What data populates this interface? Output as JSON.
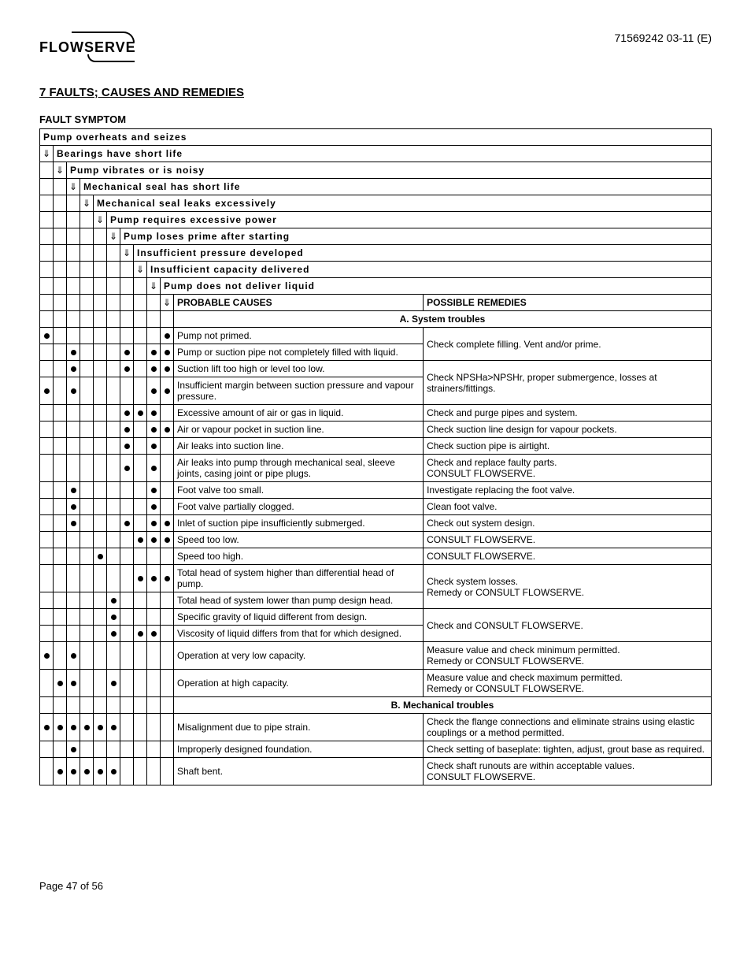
{
  "doc_id": "71569242 03-11 (E)",
  "logo_text": "FLOWSERVE",
  "section_title": "7  FAULTS; CAUSES AND REMEDIES",
  "subsection_title": "FAULT SYMPTOM",
  "symptoms": [
    "Pump overheats and seizes",
    "Bearings have short life",
    "Pump vibrates or is noisy",
    "Mechanical seal has short life",
    "Mechanical seal leaks excessively",
    "Pump requires excessive power",
    "Pump loses prime after starting",
    "Insufficient pressure developed",
    "Insufficient capacity delivered",
    "Pump does not deliver liquid"
  ],
  "column_headers": {
    "causes": "PROBABLE CAUSES",
    "remedies": "POSSIBLE REMEDIES"
  },
  "categories": {
    "a": "A.  System troubles",
    "b": "B.  Mechanical troubles"
  },
  "rows_a": [
    {
      "dots": [
        1,
        0,
        0,
        0,
        0,
        0,
        0,
        0,
        0,
        1
      ],
      "cause": "Pump not primed.",
      "remedy": "Check complete filling.  Vent and/or prime.",
      "rowspan_remedy": 2
    },
    {
      "dots": [
        0,
        0,
        1,
        0,
        0,
        0,
        1,
        0,
        1,
        1
      ],
      "cause": "Pump or suction pipe not completely filled with liquid."
    },
    {
      "dots": [
        0,
        0,
        1,
        0,
        0,
        0,
        1,
        0,
        1,
        1
      ],
      "cause": "Suction lift too high or level too low.",
      "remedy": "Check NPSHa>NPSHr, proper submergence, losses at strainers/fittings.",
      "rowspan_remedy": 2
    },
    {
      "dots": [
        1,
        0,
        1,
        0,
        0,
        0,
        0,
        0,
        1,
        1
      ],
      "cause": "Insufficient margin between suction pressure and vapour pressure."
    },
    {
      "dots": [
        0,
        0,
        0,
        0,
        0,
        0,
        1,
        1,
        1,
        0
      ],
      "cause": "Excessive amount of air or gas in liquid.",
      "remedy": "Check and purge pipes and system."
    },
    {
      "dots": [
        0,
        0,
        0,
        0,
        0,
        0,
        1,
        0,
        1,
        1
      ],
      "cause": "Air or vapour pocket in suction line.",
      "remedy": "Check suction line design for vapour pockets."
    },
    {
      "dots": [
        0,
        0,
        0,
        0,
        0,
        0,
        1,
        0,
        1,
        0
      ],
      "cause": "Air leaks into suction line.",
      "remedy": "Check suction pipe is airtight."
    },
    {
      "dots": [
        0,
        0,
        0,
        0,
        0,
        0,
        1,
        0,
        1,
        0
      ],
      "cause": "Air leaks into pump through mechanical seal, sleeve joints, casing joint or pipe plugs.",
      "remedy": "Check and replace faulty parts.\nCONSULT FLOWSERVE."
    },
    {
      "dots": [
        0,
        0,
        1,
        0,
        0,
        0,
        0,
        0,
        1,
        0
      ],
      "cause": "Foot valve too small.",
      "remedy": "Investigate replacing the foot valve."
    },
    {
      "dots": [
        0,
        0,
        1,
        0,
        0,
        0,
        0,
        0,
        1,
        0
      ],
      "cause": "Foot valve partially clogged.",
      "remedy": "Clean foot valve."
    },
    {
      "dots": [
        0,
        0,
        1,
        0,
        0,
        0,
        1,
        0,
        1,
        1
      ],
      "cause": "Inlet of suction pipe insufficiently submerged.",
      "remedy": "Check out system design."
    },
    {
      "dots": [
        0,
        0,
        0,
        0,
        0,
        0,
        0,
        1,
        1,
        1
      ],
      "cause": "Speed too low.",
      "remedy": "CONSULT FLOWSERVE."
    },
    {
      "dots": [
        0,
        0,
        0,
        0,
        1,
        0,
        0,
        0,
        0,
        0
      ],
      "cause": "Speed too high.",
      "remedy": "CONSULT FLOWSERVE."
    },
    {
      "dots": [
        0,
        0,
        0,
        0,
        0,
        0,
        0,
        1,
        1,
        1
      ],
      "cause": "Total head of system higher than differential head of pump.",
      "remedy": "Check system losses.\nRemedy or CONSULT FLOWSERVE.",
      "rowspan_remedy": 2
    },
    {
      "dots": [
        0,
        0,
        0,
        0,
        0,
        1,
        0,
        0,
        0,
        0
      ],
      "cause": "Total head of system lower than pump design head."
    },
    {
      "dots": [
        0,
        0,
        0,
        0,
        0,
        1,
        0,
        0,
        0,
        0
      ],
      "cause": "Specific gravity of liquid different from design.",
      "remedy": "Check and CONSULT FLOWSERVE.",
      "rowspan_remedy": 2
    },
    {
      "dots": [
        0,
        0,
        0,
        0,
        0,
        1,
        0,
        1,
        1,
        0
      ],
      "cause": "Viscosity of liquid differs from that for which designed."
    },
    {
      "dots": [
        1,
        0,
        1,
        0,
        0,
        0,
        0,
        0,
        0,
        0
      ],
      "cause": "Operation at very low capacity.",
      "remedy": "Measure value and check minimum permitted.\nRemedy or CONSULT FLOWSERVE."
    },
    {
      "dots": [
        0,
        1,
        1,
        0,
        0,
        1,
        0,
        0,
        0,
        0
      ],
      "cause": "Operation at high capacity.",
      "remedy": "Measure value and check maximum permitted.\nRemedy or CONSULT FLOWSERVE."
    }
  ],
  "rows_b": [
    {
      "dots": [
        1,
        1,
        1,
        1,
        1,
        1,
        0,
        0,
        0,
        0
      ],
      "cause": "Misalignment due to pipe strain.",
      "remedy": "Check the flange connections and eliminate strains using elastic couplings or a method permitted."
    },
    {
      "dots": [
        0,
        0,
        1,
        0,
        0,
        0,
        0,
        0,
        0,
        0
      ],
      "cause": "Improperly designed foundation.",
      "remedy": "Check setting of baseplate: tighten, adjust, grout base as required."
    },
    {
      "dots": [
        0,
        1,
        1,
        1,
        1,
        1,
        0,
        0,
        0,
        0
      ],
      "cause": "Shaft bent.",
      "remedy": "Check shaft runouts are within acceptable values.\nCONSULT FLOWSERVE."
    }
  ],
  "arrow_glyph": "⇓",
  "page_footer": "Page 47 of 56"
}
